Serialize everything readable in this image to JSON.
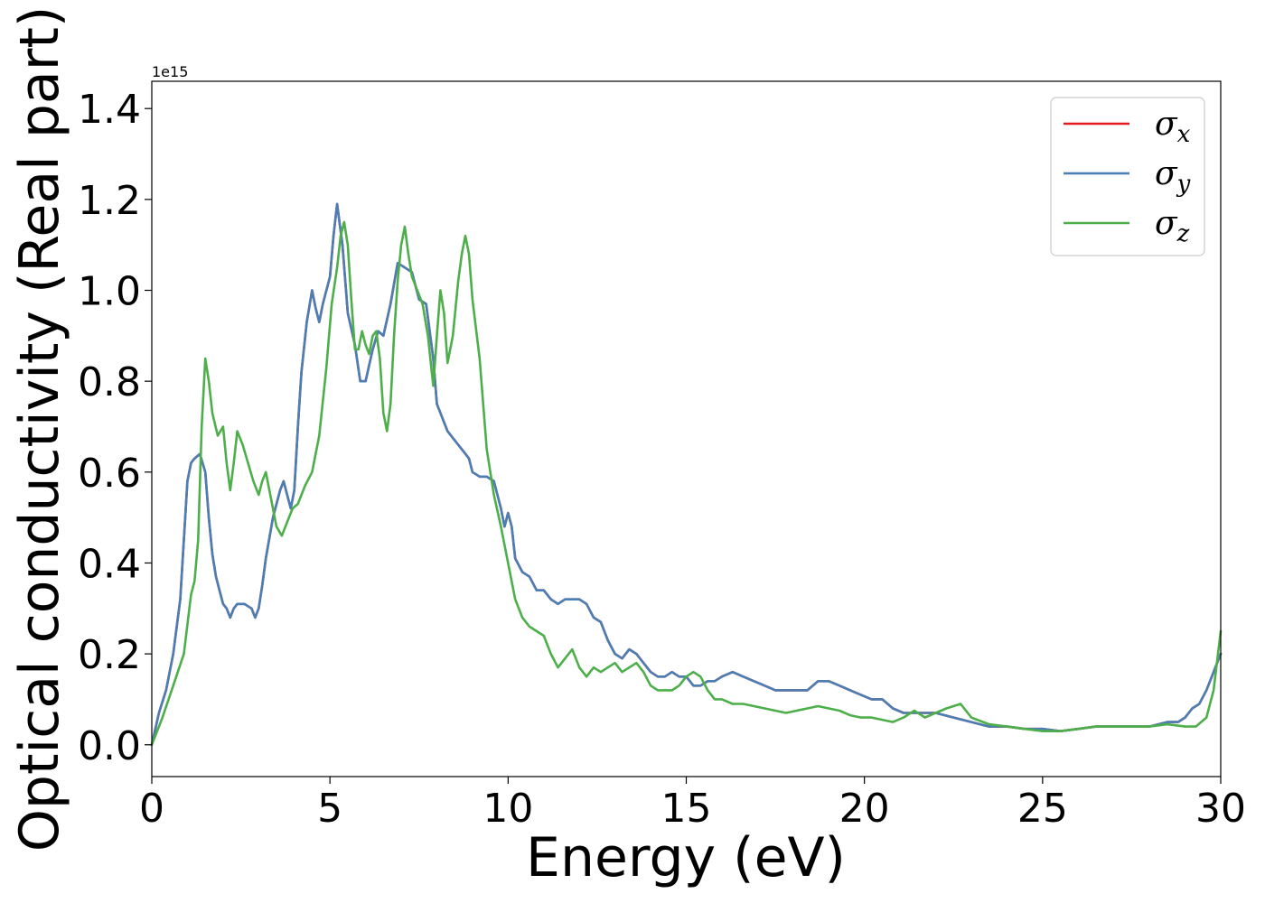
{
  "chart_data": {
    "type": "line",
    "title": "",
    "xlabel": "Energy (eV)",
    "ylabel": "Optical conductivity (Real part)",
    "offset_text": "1e15",
    "xlim": [
      0,
      30
    ],
    "ylim": [
      -0.07,
      1.46
    ],
    "xticks": [
      0,
      5,
      10,
      15,
      20,
      25,
      30
    ],
    "xtick_labels": [
      "0",
      "5",
      "10",
      "15",
      "20",
      "25",
      "30"
    ],
    "yticks": [
      0.0,
      0.2,
      0.4,
      0.6,
      0.8,
      1.0,
      1.2,
      1.4
    ],
    "ytick_labels": [
      "0.0",
      "0.2",
      "0.4",
      "0.6",
      "0.8",
      "1.0",
      "1.2",
      "1.4"
    ],
    "grid": false,
    "legend_position": "top-right",
    "series": [
      {
        "name": "σx",
        "color": "#e41a1c",
        "x": [
          0,
          0.2,
          0.4,
          0.6,
          0.8,
          1.0,
          1.1,
          1.2,
          1.35,
          1.5,
          1.6,
          1.7,
          1.8,
          1.9,
          2.0,
          2.1,
          2.2,
          2.3,
          2.4,
          2.6,
          2.8,
          2.9,
          3.0,
          3.1,
          3.2,
          3.4,
          3.6,
          3.7,
          3.8,
          3.9,
          4.0,
          4.1,
          4.2,
          4.35,
          4.5,
          4.6,
          4.7,
          4.8,
          5.0,
          5.1,
          5.2,
          5.35,
          5.5,
          5.7,
          5.85,
          6.0,
          6.2,
          6.35,
          6.5,
          6.7,
          6.9,
          7.1,
          7.3,
          7.5,
          7.7,
          7.9,
          8.0,
          8.15,
          8.3,
          8.5,
          8.7,
          8.9,
          9.0,
          9.2,
          9.4,
          9.6,
          9.8,
          9.9,
          10.0,
          10.1,
          10.2,
          10.4,
          10.6,
          10.8,
          11.0,
          11.2,
          11.4,
          11.6,
          11.8,
          12.0,
          12.2,
          12.4,
          12.6,
          12.8,
          13.0,
          13.2,
          13.4,
          13.6,
          13.8,
          14.0,
          14.2,
          14.4,
          14.6,
          14.8,
          15.0,
          15.2,
          15.4,
          15.6,
          15.8,
          16.0,
          16.3,
          16.6,
          16.9,
          17.2,
          17.5,
          17.8,
          18.1,
          18.4,
          18.7,
          19.0,
          19.3,
          19.6,
          19.9,
          20.2,
          20.5,
          20.8,
          21.1,
          21.4,
          21.7,
          22.0,
          22.5,
          23.0,
          23.5,
          24.0,
          24.5,
          25.0,
          25.5,
          26.0,
          26.5,
          27.0,
          27.5,
          28.0,
          28.5,
          28.8,
          29.0,
          29.2,
          29.4,
          29.6,
          29.8,
          30.0
        ],
        "y": [
          0.0,
          0.07,
          0.12,
          0.2,
          0.32,
          0.58,
          0.62,
          0.63,
          0.64,
          0.6,
          0.5,
          0.42,
          0.37,
          0.34,
          0.31,
          0.3,
          0.28,
          0.3,
          0.31,
          0.31,
          0.3,
          0.28,
          0.3,
          0.35,
          0.41,
          0.5,
          0.56,
          0.58,
          0.55,
          0.52,
          0.56,
          0.7,
          0.82,
          0.93,
          1.0,
          0.96,
          0.93,
          0.97,
          1.03,
          1.12,
          1.19,
          1.1,
          0.95,
          0.88,
          0.8,
          0.8,
          0.87,
          0.91,
          0.9,
          0.97,
          1.06,
          1.05,
          1.04,
          0.98,
          0.97,
          0.85,
          0.75,
          0.72,
          0.69,
          0.67,
          0.65,
          0.63,
          0.6,
          0.59,
          0.59,
          0.58,
          0.52,
          0.48,
          0.51,
          0.48,
          0.41,
          0.38,
          0.37,
          0.34,
          0.34,
          0.32,
          0.31,
          0.32,
          0.32,
          0.32,
          0.31,
          0.28,
          0.27,
          0.23,
          0.2,
          0.19,
          0.21,
          0.2,
          0.18,
          0.16,
          0.15,
          0.15,
          0.16,
          0.15,
          0.15,
          0.13,
          0.13,
          0.14,
          0.14,
          0.15,
          0.16,
          0.15,
          0.14,
          0.13,
          0.12,
          0.12,
          0.12,
          0.12,
          0.14,
          0.14,
          0.13,
          0.12,
          0.11,
          0.1,
          0.1,
          0.08,
          0.07,
          0.07,
          0.07,
          0.07,
          0.06,
          0.05,
          0.04,
          0.04,
          0.035,
          0.035,
          0.03,
          0.035,
          0.04,
          0.04,
          0.04,
          0.04,
          0.05,
          0.05,
          0.06,
          0.08,
          0.09,
          0.12,
          0.16,
          0.2
        ]
      },
      {
        "name": "σy",
        "color": "#4a7fb5",
        "x": [
          0,
          0.2,
          0.4,
          0.6,
          0.8,
          1.0,
          1.1,
          1.2,
          1.35,
          1.5,
          1.6,
          1.7,
          1.8,
          1.9,
          2.0,
          2.1,
          2.2,
          2.3,
          2.4,
          2.6,
          2.8,
          2.9,
          3.0,
          3.1,
          3.2,
          3.4,
          3.6,
          3.7,
          3.8,
          3.9,
          4.0,
          4.1,
          4.2,
          4.35,
          4.5,
          4.6,
          4.7,
          4.8,
          5.0,
          5.1,
          5.2,
          5.35,
          5.5,
          5.7,
          5.85,
          6.0,
          6.2,
          6.35,
          6.5,
          6.7,
          6.9,
          7.1,
          7.3,
          7.5,
          7.7,
          7.9,
          8.0,
          8.15,
          8.3,
          8.5,
          8.7,
          8.9,
          9.0,
          9.2,
          9.4,
          9.6,
          9.8,
          9.9,
          10.0,
          10.1,
          10.2,
          10.4,
          10.6,
          10.8,
          11.0,
          11.2,
          11.4,
          11.6,
          11.8,
          12.0,
          12.2,
          12.4,
          12.6,
          12.8,
          13.0,
          13.2,
          13.4,
          13.6,
          13.8,
          14.0,
          14.2,
          14.4,
          14.6,
          14.8,
          15.0,
          15.2,
          15.4,
          15.6,
          15.8,
          16.0,
          16.3,
          16.6,
          16.9,
          17.2,
          17.5,
          17.8,
          18.1,
          18.4,
          18.7,
          19.0,
          19.3,
          19.6,
          19.9,
          20.2,
          20.5,
          20.8,
          21.1,
          21.4,
          21.7,
          22.0,
          22.5,
          23.0,
          23.5,
          24.0,
          24.5,
          25.0,
          25.5,
          26.0,
          26.5,
          27.0,
          27.5,
          28.0,
          28.5,
          28.8,
          29.0,
          29.2,
          29.4,
          29.6,
          29.8,
          30.0
        ],
        "y": [
          0.0,
          0.07,
          0.12,
          0.2,
          0.32,
          0.58,
          0.62,
          0.63,
          0.64,
          0.6,
          0.5,
          0.42,
          0.37,
          0.34,
          0.31,
          0.3,
          0.28,
          0.3,
          0.31,
          0.31,
          0.3,
          0.28,
          0.3,
          0.35,
          0.41,
          0.5,
          0.56,
          0.58,
          0.55,
          0.52,
          0.56,
          0.7,
          0.82,
          0.93,
          1.0,
          0.96,
          0.93,
          0.97,
          1.03,
          1.12,
          1.19,
          1.1,
          0.95,
          0.88,
          0.8,
          0.8,
          0.87,
          0.91,
          0.9,
          0.97,
          1.06,
          1.05,
          1.04,
          0.98,
          0.97,
          0.85,
          0.75,
          0.72,
          0.69,
          0.67,
          0.65,
          0.63,
          0.6,
          0.59,
          0.59,
          0.58,
          0.52,
          0.48,
          0.51,
          0.48,
          0.41,
          0.38,
          0.37,
          0.34,
          0.34,
          0.32,
          0.31,
          0.32,
          0.32,
          0.32,
          0.31,
          0.28,
          0.27,
          0.23,
          0.2,
          0.19,
          0.21,
          0.2,
          0.18,
          0.16,
          0.15,
          0.15,
          0.16,
          0.15,
          0.15,
          0.13,
          0.13,
          0.14,
          0.14,
          0.15,
          0.16,
          0.15,
          0.14,
          0.13,
          0.12,
          0.12,
          0.12,
          0.12,
          0.14,
          0.14,
          0.13,
          0.12,
          0.11,
          0.1,
          0.1,
          0.08,
          0.07,
          0.07,
          0.07,
          0.07,
          0.06,
          0.05,
          0.04,
          0.04,
          0.035,
          0.035,
          0.03,
          0.035,
          0.04,
          0.04,
          0.04,
          0.04,
          0.05,
          0.05,
          0.06,
          0.08,
          0.09,
          0.12,
          0.16,
          0.2
        ]
      },
      {
        "name": "σz",
        "color": "#4daf4a",
        "x": [
          0,
          0.3,
          0.6,
          0.9,
          1.1,
          1.2,
          1.3,
          1.4,
          1.5,
          1.6,
          1.7,
          1.85,
          2.0,
          2.1,
          2.2,
          2.3,
          2.4,
          2.55,
          2.7,
          2.85,
          3.0,
          3.1,
          3.2,
          3.35,
          3.5,
          3.65,
          3.8,
          3.95,
          4.1,
          4.3,
          4.5,
          4.7,
          4.9,
          5.05,
          5.2,
          5.3,
          5.4,
          5.5,
          5.6,
          5.7,
          5.8,
          5.9,
          6.0,
          6.1,
          6.2,
          6.3,
          6.4,
          6.5,
          6.6,
          6.7,
          6.8,
          6.9,
          7.0,
          7.1,
          7.2,
          7.3,
          7.45,
          7.6,
          7.75,
          7.9,
          8.0,
          8.1,
          8.2,
          8.3,
          8.45,
          8.6,
          8.7,
          8.8,
          8.9,
          9.0,
          9.2,
          9.4,
          9.6,
          9.8,
          10.0,
          10.2,
          10.4,
          10.6,
          10.8,
          11.0,
          11.2,
          11.4,
          11.6,
          11.8,
          12.0,
          12.2,
          12.4,
          12.6,
          12.8,
          13.0,
          13.2,
          13.4,
          13.6,
          13.8,
          14.0,
          14.2,
          14.4,
          14.6,
          14.8,
          15.0,
          15.2,
          15.4,
          15.6,
          15.8,
          16.0,
          16.3,
          16.6,
          16.9,
          17.2,
          17.5,
          17.8,
          18.1,
          18.4,
          18.7,
          19.0,
          19.3,
          19.6,
          19.9,
          20.2,
          20.5,
          20.8,
          21.1,
          21.4,
          21.7,
          22.0,
          22.3,
          22.7,
          23.0,
          23.5,
          24.0,
          24.5,
          25.0,
          25.5,
          26.0,
          26.5,
          27.0,
          27.5,
          28.0,
          28.5,
          29.0,
          29.3,
          29.6,
          29.8,
          30.0
        ],
        "y": [
          0.0,
          0.06,
          0.13,
          0.2,
          0.33,
          0.36,
          0.45,
          0.7,
          0.85,
          0.8,
          0.73,
          0.68,
          0.7,
          0.62,
          0.56,
          0.62,
          0.69,
          0.66,
          0.62,
          0.58,
          0.55,
          0.58,
          0.6,
          0.54,
          0.48,
          0.46,
          0.49,
          0.52,
          0.53,
          0.57,
          0.6,
          0.68,
          0.83,
          0.97,
          1.05,
          1.12,
          1.15,
          1.1,
          0.98,
          0.87,
          0.87,
          0.91,
          0.88,
          0.86,
          0.9,
          0.91,
          0.85,
          0.73,
          0.69,
          0.75,
          0.9,
          1.02,
          1.1,
          1.14,
          1.08,
          1.03,
          1.0,
          0.97,
          0.9,
          0.79,
          0.9,
          1.0,
          0.95,
          0.84,
          0.9,
          1.02,
          1.08,
          1.12,
          1.08,
          0.98,
          0.85,
          0.65,
          0.55,
          0.48,
          0.4,
          0.32,
          0.28,
          0.26,
          0.25,
          0.24,
          0.2,
          0.17,
          0.19,
          0.21,
          0.17,
          0.15,
          0.17,
          0.16,
          0.17,
          0.18,
          0.16,
          0.17,
          0.18,
          0.16,
          0.13,
          0.12,
          0.12,
          0.12,
          0.13,
          0.15,
          0.16,
          0.15,
          0.12,
          0.1,
          0.1,
          0.09,
          0.09,
          0.085,
          0.08,
          0.075,
          0.07,
          0.075,
          0.08,
          0.085,
          0.08,
          0.075,
          0.065,
          0.06,
          0.06,
          0.055,
          0.05,
          0.06,
          0.075,
          0.06,
          0.07,
          0.08,
          0.09,
          0.06,
          0.045,
          0.04,
          0.035,
          0.03,
          0.03,
          0.035,
          0.04,
          0.04,
          0.04,
          0.04,
          0.045,
          0.04,
          0.04,
          0.06,
          0.12,
          0.25
        ]
      }
    ]
  }
}
